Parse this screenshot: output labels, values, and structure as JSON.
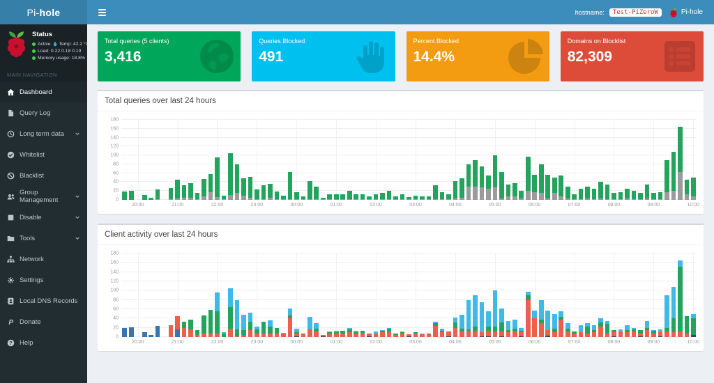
{
  "navbar": {
    "brand_prefix": "Pi-",
    "brand_bold": "hole",
    "hostname_label": "hostname:",
    "hostname_value": "Test-PiZeroW",
    "user_label": "Pi-hole"
  },
  "sidebar": {
    "status": {
      "title": "Status",
      "active_label": "Active",
      "temp_text": "Temp: 42.2 °C",
      "load_text": "Load:  0.22  0.18  0.19",
      "memory_text": "Memory usage:  18.8%"
    },
    "nav_section_label": "MAIN NAVIGATION",
    "items": [
      {
        "label": "Dashboard",
        "icon": "home-icon",
        "active": true,
        "chevron": false
      },
      {
        "label": "Query Log",
        "icon": "file-icon",
        "active": false,
        "chevron": false
      },
      {
        "label": "Long term data",
        "icon": "clock-icon",
        "active": false,
        "chevron": true
      },
      {
        "label": "Whitelist",
        "icon": "check-circle-icon",
        "active": false,
        "chevron": false
      },
      {
        "label": "Blacklist",
        "icon": "ban-icon",
        "active": false,
        "chevron": false
      },
      {
        "label": "Group Management",
        "icon": "users-icon",
        "active": false,
        "chevron": true
      },
      {
        "label": "Disable",
        "icon": "stop-icon",
        "active": false,
        "chevron": true
      },
      {
        "label": "Tools",
        "icon": "folder-icon",
        "active": false,
        "chevron": true
      },
      {
        "label": "Network",
        "icon": "sitemap-icon",
        "active": false,
        "chevron": false
      },
      {
        "label": "Settings",
        "icon": "gears-icon",
        "active": false,
        "chevron": false
      },
      {
        "label": "Local DNS Records",
        "icon": "address-book-icon",
        "active": false,
        "chevron": false
      },
      {
        "label": "Donate",
        "icon": "paypal-icon",
        "active": false,
        "chevron": false
      },
      {
        "label": "Help",
        "icon": "question-circle-icon",
        "active": false,
        "chevron": false
      }
    ]
  },
  "summary_cards": [
    {
      "name": "total-queries",
      "label": "Total queries (5 clients)",
      "value": "3,416",
      "color": "#00a65a",
      "icon": "globe-icon"
    },
    {
      "name": "queries-blocked",
      "label": "Queries Blocked",
      "value": "491",
      "color": "#00c0ef",
      "icon": "hand-stop-icon"
    },
    {
      "name": "percent-blocked",
      "label": "Percent Blocked",
      "value": "14.4%",
      "color": "#f39c12",
      "icon": "pie-chart-icon"
    },
    {
      "name": "domains-blocklist",
      "label": "Domains on Blocklist",
      "value": "82,309",
      "color": "#dd4b39",
      "icon": "list-icon"
    }
  ],
  "chart_data": [
    {
      "id": "total-queries-chart",
      "type": "bar",
      "stacked": true,
      "title": "Total queries over last 24 hours",
      "x_start": "19:40",
      "x_interval_minutes": 10,
      "x_labels": [
        "20:00",
        "21:00",
        "22:00",
        "23:00",
        "00:00",
        "01:00",
        "02:00",
        "03:00",
        "04:00",
        "05:00",
        "06:00",
        "07:00",
        "08:00",
        "09:00",
        "10:00"
      ],
      "x_label_slots": [
        2,
        8,
        14,
        20,
        26,
        32,
        38,
        44,
        50,
        56,
        62,
        68,
        74,
        80,
        86
      ],
      "ylim": [
        0,
        180
      ],
      "ytick_step": 20,
      "grid": true,
      "legend": "none",
      "series": [
        {
          "name": "Blocked",
          "color": "#9b9b9b",
          "values": [
            0,
            0,
            0,
            0,
            0,
            1,
            0,
            1,
            3,
            4,
            4,
            1,
            8,
            17,
            7,
            1,
            11,
            15,
            10,
            5,
            1,
            2,
            4,
            1,
            1,
            2,
            2,
            1,
            2,
            2,
            2,
            1,
            1,
            2,
            2,
            1,
            1,
            1,
            1,
            2,
            2,
            1,
            2,
            1,
            2,
            1,
            1,
            2,
            2,
            1,
            3,
            4,
            30,
            30,
            28,
            25,
            28,
            3,
            8,
            8,
            3,
            20,
            18,
            15,
            3,
            15,
            8,
            3,
            1,
            2,
            3,
            2,
            3,
            2,
            2,
            2,
            3,
            2,
            2,
            3,
            2,
            2,
            18,
            20,
            62,
            12,
            8
          ]
        },
        {
          "name": "Permitted",
          "color": "#23a45c",
          "values": [
            19,
            21,
            0,
            11,
            4,
            23,
            0,
            25,
            42,
            29,
            33,
            14,
            39,
            41,
            89,
            9,
            94,
            65,
            38,
            47,
            22,
            31,
            32,
            18,
            8,
            60,
            16,
            7,
            41,
            28,
            3,
            11,
            12,
            11,
            18,
            12,
            12,
            7,
            11,
            13,
            18,
            7,
            10,
            5,
            8,
            7,
            7,
            31,
            16,
            11,
            39,
            44,
            50,
            60,
            47,
            30,
            72,
            59,
            27,
            30,
            17,
            77,
            39,
            65,
            54,
            35,
            47,
            27,
            11,
            23,
            27,
            23,
            37,
            33,
            13,
            15,
            22,
            18,
            13,
            32,
            13,
            15,
            72,
            88,
            103,
            33,
            42
          ]
        }
      ]
    },
    {
      "id": "client-activity-chart",
      "type": "bar",
      "stacked": true,
      "title": "Client activity over last 24 hours",
      "x_start": "19:40",
      "x_interval_minutes": 10,
      "x_labels": [
        "20:00",
        "21:00",
        "22:00",
        "23:00",
        "00:00",
        "01:00",
        "02:00",
        "03:00",
        "04:00",
        "05:00",
        "06:00",
        "07:00",
        "08:00",
        "09:00",
        "10:00"
      ],
      "x_label_slots": [
        2,
        8,
        14,
        20,
        26,
        32,
        38,
        44,
        50,
        56,
        62,
        68,
        74,
        80,
        86
      ],
      "ylim": [
        0,
        180
      ],
      "ytick_step": 20,
      "grid": true,
      "legend": "none",
      "series": [
        {
          "name": "client-navy",
          "color": "#34495e",
          "values": [
            0,
            0,
            0,
            0,
            0,
            0,
            0,
            0,
            0,
            0,
            0,
            0,
            0,
            0,
            0,
            0,
            0,
            0,
            0,
            0,
            0,
            0,
            0,
            0,
            0,
            0,
            2,
            0,
            0,
            0,
            1,
            0,
            0,
            0,
            0,
            0,
            0,
            1,
            0,
            0,
            0,
            0,
            0,
            2,
            0,
            0,
            0,
            0,
            0,
            1,
            0,
            0,
            0,
            0,
            2,
            2,
            0,
            2,
            0,
            0,
            2,
            0,
            0,
            0,
            3,
            0,
            0,
            0,
            0,
            0,
            0,
            0,
            0,
            0,
            2,
            0,
            0,
            0,
            1,
            0,
            0,
            2,
            0,
            0,
            0,
            0,
            4
          ]
        },
        {
          "name": "client-blue",
          "color": "#3a76ad",
          "values": [
            19,
            21,
            0,
            11,
            4,
            24,
            0,
            0,
            17,
            0,
            0,
            0,
            0,
            0,
            0,
            0,
            0,
            0,
            0,
            0,
            0,
            0,
            0,
            0,
            0,
            0,
            0,
            0,
            0,
            0,
            0,
            0,
            0,
            0,
            0,
            0,
            0,
            0,
            0,
            0,
            0,
            0,
            0,
            0,
            0,
            0,
            0,
            0,
            0,
            0,
            0,
            0,
            0,
            0,
            0,
            0,
            0,
            0,
            0,
            0,
            0,
            0,
            0,
            0,
            0,
            0,
            0,
            0,
            0,
            0,
            0,
            0,
            0,
            0,
            0,
            0,
            0,
            0,
            0,
            0,
            0,
            0,
            0,
            0,
            0,
            0,
            0
          ]
        },
        {
          "name": "client-red",
          "color": "#ed5f4c",
          "values": [
            0,
            0,
            0,
            0,
            0,
            0,
            0,
            26,
            28,
            20,
            16,
            5,
            8,
            8,
            8,
            0,
            18,
            2,
            5,
            15,
            7,
            8,
            8,
            7,
            7,
            40,
            5,
            6,
            16,
            12,
            4,
            8,
            8,
            8,
            10,
            8,
            8,
            5,
            8,
            10,
            12,
            5,
            8,
            4,
            7,
            6,
            6,
            24,
            10,
            9,
            20,
            12,
            14,
            14,
            8,
            12,
            12,
            10,
            10,
            12,
            8,
            80,
            40,
            30,
            12,
            10,
            38,
            12,
            8,
            10,
            8,
            10,
            22,
            8,
            8,
            12,
            10,
            12,
            8,
            15,
            8,
            8,
            12,
            10,
            12,
            8,
            0
          ]
        },
        {
          "name": "client-green",
          "color": "#23a45c",
          "values": [
            0,
            0,
            0,
            0,
            0,
            0,
            0,
            0,
            0,
            13,
            21,
            10,
            39,
            50,
            48,
            8,
            47,
            14,
            10,
            18,
            10,
            25,
            15,
            12,
            0,
            6,
            4,
            2,
            0,
            6,
            0,
            2,
            3,
            5,
            6,
            3,
            5,
            2,
            0,
            3,
            6,
            3,
            2,
            0,
            3,
            0,
            2,
            6,
            4,
            2,
            12,
            6,
            2,
            8,
            0,
            8,
            10,
            20,
            5,
            6,
            4,
            10,
            0,
            8,
            0,
            8,
            5,
            6,
            4,
            0,
            15,
            5,
            10,
            20,
            5,
            0,
            5,
            5,
            6,
            5,
            5,
            0,
            8,
            30,
            140,
            37,
            36
          ]
        },
        {
          "name": "client-cyan",
          "color": "#3fb9e6",
          "values": [
            0,
            0,
            0,
            0,
            0,
            0,
            0,
            0,
            0,
            0,
            0,
            0,
            0,
            0,
            40,
            2,
            40,
            64,
            33,
            19,
            6,
            0,
            13,
            0,
            2,
            16,
            7,
            0,
            27,
            12,
            0,
            2,
            2,
            0,
            4,
            2,
            0,
            0,
            4,
            2,
            2,
            0,
            2,
            0,
            0,
            2,
            0,
            3,
            4,
            0,
            10,
            30,
            64,
            68,
            65,
            33,
            78,
            30,
            20,
            20,
            6,
            7,
            17,
            42,
            42,
            32,
            12,
            12,
            0,
            15,
            7,
            10,
            8,
            7,
            0,
            5,
            10,
            3,
            0,
            15,
            2,
            7,
            70,
            68,
            13,
            0,
            10
          ]
        }
      ]
    }
  ]
}
